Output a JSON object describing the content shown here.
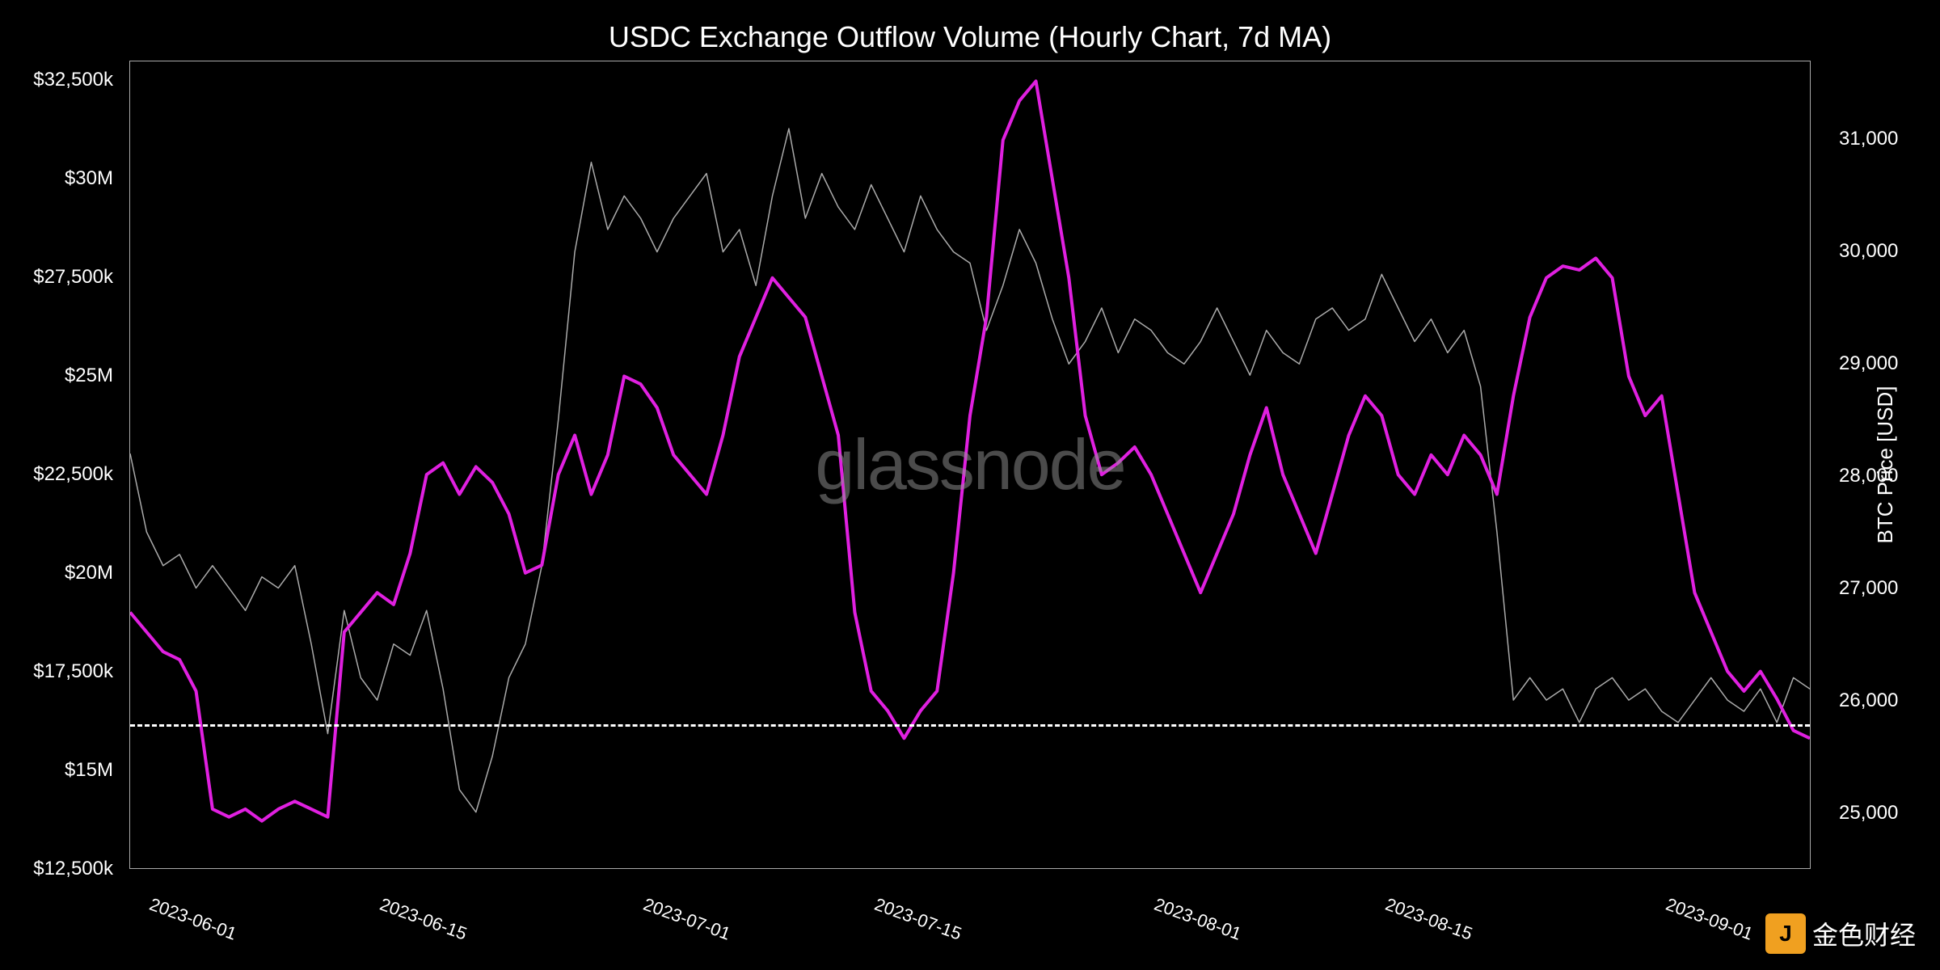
{
  "chart": {
    "type": "line-dual-axis",
    "title": "USDC Exchange Outflow Volume (Hourly Chart, 7d MA)",
    "background_color": "#000000",
    "text_color": "#ffffff",
    "title_fontsize": 36,
    "axis_fontsize": 24,
    "border_color": "#aaaaaa",
    "watermark_text": "glassnode",
    "watermark_color": "rgba(150,150,150,0.5)",
    "watermark_fontsize": 88,
    "source_watermark": "金色财经",
    "y_left": {
      "min": 12500000,
      "max": 33000000,
      "ticks": [
        {
          "v": 12500000,
          "label": "$12,500k"
        },
        {
          "v": 15000000,
          "label": "$15M"
        },
        {
          "v": 17500000,
          "label": "$17,500k"
        },
        {
          "v": 20000000,
          "label": "$20M"
        },
        {
          "v": 22500000,
          "label": "$22,500k"
        },
        {
          "v": 25000000,
          "label": "$25M"
        },
        {
          "v": 27500000,
          "label": "$27,500k"
        },
        {
          "v": 30000000,
          "label": "$30M"
        },
        {
          "v": 32500000,
          "label": "$32,500k"
        }
      ]
    },
    "y_right": {
      "label": "BTC Price [USD]",
      "min": 24500,
      "max": 31700,
      "ticks": [
        {
          "v": 25000,
          "label": "25,000"
        },
        {
          "v": 26000,
          "label": "26,000"
        },
        {
          "v": 27000,
          "label": "27,000"
        },
        {
          "v": 28000,
          "label": "28,000"
        },
        {
          "v": 29000,
          "label": "29,000"
        },
        {
          "v": 30000,
          "label": "30,000"
        },
        {
          "v": 31000,
          "label": "31,000"
        }
      ]
    },
    "x": {
      "min": 0,
      "max": 102,
      "ticks": [
        {
          "v": 4,
          "label": "2023-06-01"
        },
        {
          "v": 18,
          "label": "2023-06-15"
        },
        {
          "v": 34,
          "label": "2023-07-01"
        },
        {
          "v": 48,
          "label": "2023-07-15"
        },
        {
          "v": 65,
          "label": "2023-08-01"
        },
        {
          "v": 79,
          "label": "2023-08-15"
        },
        {
          "v": 96,
          "label": "2023-09-01"
        }
      ]
    },
    "threshold_line": {
      "axis": "left",
      "value": 16200000,
      "color": "#ffffff",
      "dash": "6,6",
      "width": 3
    },
    "series": [
      {
        "name": "btc_price",
        "axis": "right",
        "color": "#aaaaaa",
        "width": 1.5,
        "data": [
          [
            0,
            28200
          ],
          [
            1,
            27500
          ],
          [
            2,
            27200
          ],
          [
            3,
            27300
          ],
          [
            4,
            27000
          ],
          [
            5,
            27200
          ],
          [
            6,
            27000
          ],
          [
            7,
            26800
          ],
          [
            8,
            27100
          ],
          [
            9,
            27000
          ],
          [
            10,
            27200
          ],
          [
            11,
            26500
          ],
          [
            12,
            25700
          ],
          [
            13,
            26800
          ],
          [
            14,
            26200
          ],
          [
            15,
            26000
          ],
          [
            16,
            26500
          ],
          [
            17,
            26400
          ],
          [
            18,
            26800
          ],
          [
            19,
            26100
          ],
          [
            20,
            25200
          ],
          [
            21,
            25000
          ],
          [
            22,
            25500
          ],
          [
            23,
            26200
          ],
          [
            24,
            26500
          ],
          [
            25,
            27200
          ],
          [
            26,
            28500
          ],
          [
            27,
            30000
          ],
          [
            28,
            30800
          ],
          [
            29,
            30200
          ],
          [
            30,
            30500
          ],
          [
            31,
            30300
          ],
          [
            32,
            30000
          ],
          [
            33,
            30300
          ],
          [
            34,
            30500
          ],
          [
            35,
            30700
          ],
          [
            36,
            30000
          ],
          [
            37,
            30200
          ],
          [
            38,
            29700
          ],
          [
            39,
            30500
          ],
          [
            40,
            31100
          ],
          [
            41,
            30300
          ],
          [
            42,
            30700
          ],
          [
            43,
            30400
          ],
          [
            44,
            30200
          ],
          [
            45,
            30600
          ],
          [
            46,
            30300
          ],
          [
            47,
            30000
          ],
          [
            48,
            30500
          ],
          [
            49,
            30200
          ],
          [
            50,
            30000
          ],
          [
            51,
            29900
          ],
          [
            52,
            29300
          ],
          [
            53,
            29700
          ],
          [
            54,
            30200
          ],
          [
            55,
            29900
          ],
          [
            56,
            29400
          ],
          [
            57,
            29000
          ],
          [
            58,
            29200
          ],
          [
            59,
            29500
          ],
          [
            60,
            29100
          ],
          [
            61,
            29400
          ],
          [
            62,
            29300
          ],
          [
            63,
            29100
          ],
          [
            64,
            29000
          ],
          [
            65,
            29200
          ],
          [
            66,
            29500
          ],
          [
            67,
            29200
          ],
          [
            68,
            28900
          ],
          [
            69,
            29300
          ],
          [
            70,
            29100
          ],
          [
            71,
            29000
          ],
          [
            72,
            29400
          ],
          [
            73,
            29500
          ],
          [
            74,
            29300
          ],
          [
            75,
            29400
          ],
          [
            76,
            29800
          ],
          [
            77,
            29500
          ],
          [
            78,
            29200
          ],
          [
            79,
            29400
          ],
          [
            80,
            29100
          ],
          [
            81,
            29300
          ],
          [
            82,
            28800
          ],
          [
            83,
            27500
          ],
          [
            84,
            26000
          ],
          [
            85,
            26200
          ],
          [
            86,
            26000
          ],
          [
            87,
            26100
          ],
          [
            88,
            25800
          ],
          [
            89,
            26100
          ],
          [
            90,
            26200
          ],
          [
            91,
            26000
          ],
          [
            92,
            26100
          ],
          [
            93,
            25900
          ],
          [
            94,
            25800
          ],
          [
            95,
            26000
          ],
          [
            96,
            26200
          ],
          [
            97,
            26000
          ],
          [
            98,
            25900
          ],
          [
            99,
            26100
          ],
          [
            100,
            25800
          ],
          [
            101,
            26200
          ],
          [
            102,
            26100
          ]
        ]
      },
      {
        "name": "usdc_outflow",
        "axis": "left",
        "color": "#e020e0",
        "width": 4,
        "data": [
          [
            0,
            19000000
          ],
          [
            1,
            18500000
          ],
          [
            2,
            18000000
          ],
          [
            3,
            17800000
          ],
          [
            4,
            17000000
          ],
          [
            5,
            14000000
          ],
          [
            6,
            13800000
          ],
          [
            7,
            14000000
          ],
          [
            8,
            13700000
          ],
          [
            9,
            14000000
          ],
          [
            10,
            14200000
          ],
          [
            11,
            14000000
          ],
          [
            12,
            13800000
          ],
          [
            13,
            18500000
          ],
          [
            14,
            19000000
          ],
          [
            15,
            19500000
          ],
          [
            16,
            19200000
          ],
          [
            17,
            20500000
          ],
          [
            18,
            22500000
          ],
          [
            19,
            22800000
          ],
          [
            20,
            22000000
          ],
          [
            21,
            22700000
          ],
          [
            22,
            22300000
          ],
          [
            23,
            21500000
          ],
          [
            24,
            20000000
          ],
          [
            25,
            20200000
          ],
          [
            26,
            22500000
          ],
          [
            27,
            23500000
          ],
          [
            28,
            22000000
          ],
          [
            29,
            23000000
          ],
          [
            30,
            25000000
          ],
          [
            31,
            24800000
          ],
          [
            32,
            24200000
          ],
          [
            33,
            23000000
          ],
          [
            34,
            22500000
          ],
          [
            35,
            22000000
          ],
          [
            36,
            23500000
          ],
          [
            37,
            25500000
          ],
          [
            38,
            26500000
          ],
          [
            39,
            27500000
          ],
          [
            40,
            27000000
          ],
          [
            41,
            26500000
          ],
          [
            42,
            25000000
          ],
          [
            43,
            23500000
          ],
          [
            44,
            19000000
          ],
          [
            45,
            17000000
          ],
          [
            46,
            16500000
          ],
          [
            47,
            15800000
          ],
          [
            48,
            16500000
          ],
          [
            49,
            17000000
          ],
          [
            50,
            20000000
          ],
          [
            51,
            24000000
          ],
          [
            52,
            26500000
          ],
          [
            53,
            31000000
          ],
          [
            54,
            32000000
          ],
          [
            55,
            32500000
          ],
          [
            56,
            30000000
          ],
          [
            57,
            27500000
          ],
          [
            58,
            24000000
          ],
          [
            59,
            22500000
          ],
          [
            60,
            22800000
          ],
          [
            61,
            23200000
          ],
          [
            62,
            22500000
          ],
          [
            63,
            21500000
          ],
          [
            64,
            20500000
          ],
          [
            65,
            19500000
          ],
          [
            66,
            20500000
          ],
          [
            67,
            21500000
          ],
          [
            68,
            23000000
          ],
          [
            69,
            24200000
          ],
          [
            70,
            22500000
          ],
          [
            71,
            21500000
          ],
          [
            72,
            20500000
          ],
          [
            73,
            22000000
          ],
          [
            74,
            23500000
          ],
          [
            75,
            24500000
          ],
          [
            76,
            24000000
          ],
          [
            77,
            22500000
          ],
          [
            78,
            22000000
          ],
          [
            79,
            23000000
          ],
          [
            80,
            22500000
          ],
          [
            81,
            23500000
          ],
          [
            82,
            23000000
          ],
          [
            83,
            22000000
          ],
          [
            84,
            24500000
          ],
          [
            85,
            26500000
          ],
          [
            86,
            27500000
          ],
          [
            87,
            27800000
          ],
          [
            88,
            27700000
          ],
          [
            89,
            28000000
          ],
          [
            90,
            27500000
          ],
          [
            91,
            25000000
          ],
          [
            92,
            24000000
          ],
          [
            93,
            24500000
          ],
          [
            94,
            22000000
          ],
          [
            95,
            19500000
          ],
          [
            96,
            18500000
          ],
          [
            97,
            17500000
          ],
          [
            98,
            17000000
          ],
          [
            99,
            17500000
          ],
          [
            100,
            16800000
          ],
          [
            101,
            16000000
          ],
          [
            102,
            15800000
          ]
        ]
      }
    ]
  }
}
